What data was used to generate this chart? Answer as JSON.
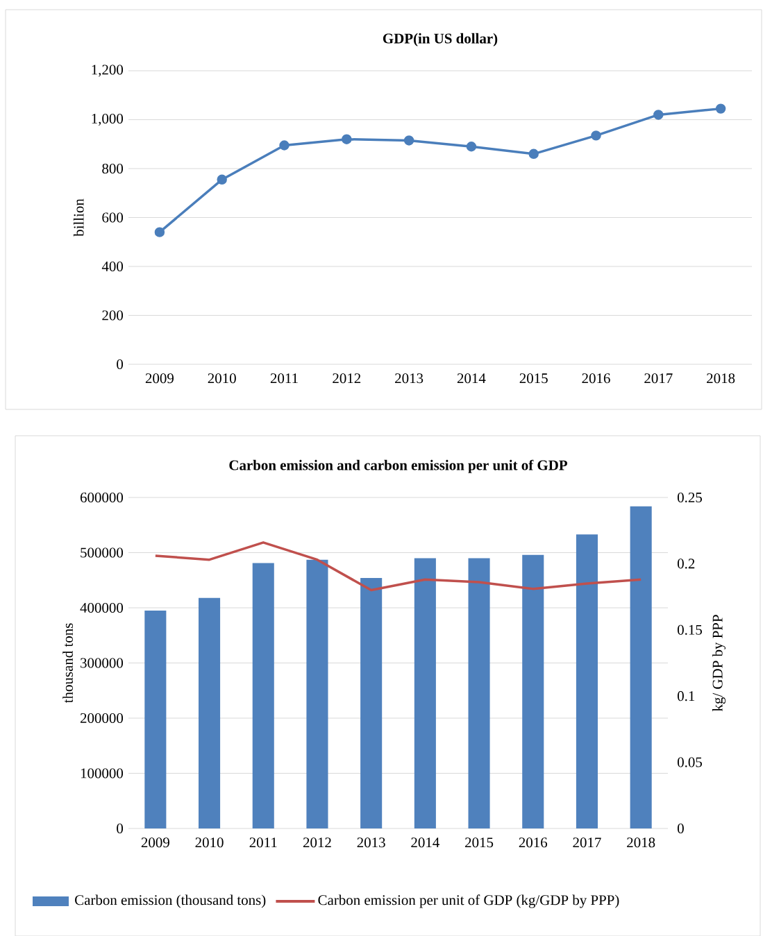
{
  "chart_data": [
    {
      "type": "line",
      "title": "GDP(in US dollar)",
      "ylabel": "billion",
      "categories": [
        "2009",
        "2010",
        "2011",
        "2012",
        "2013",
        "2014",
        "2015",
        "2016",
        "2017",
        "2018"
      ],
      "series": [
        {
          "color": "#4a7ebb",
          "values": [
            540,
            755,
            895,
            920,
            915,
            890,
            860,
            935,
            1020,
            1045
          ]
        }
      ],
      "ylim": [
        0,
        1200
      ],
      "yticks": [
        0,
        200,
        400,
        600,
        800,
        {
          "value": 1000,
          "label": "1,000"
        },
        {
          "value": 1200,
          "label": "1,200"
        }
      ],
      "grid": "y",
      "marker": "circle",
      "legend": false
    },
    {
      "type": "bar",
      "title": "Carbon emission and  carbon emission per unit of GDP",
      "ylabel": "thousand tons",
      "y2label": "kg/ GDP  by PPP",
      "categories": [
        "2009",
        "2010",
        "2011",
        "2012",
        "2013",
        "2014",
        "2015",
        "2016",
        "2017",
        "2018"
      ],
      "series": [
        {
          "name": "Carbon emission (thousand tons)",
          "color": "#4f81bd",
          "values": [
            395000,
            418000,
            481000,
            487000,
            454000,
            490000,
            490000,
            496000,
            533000,
            584000
          ]
        },
        {
          "name": "Carbon emission per unit of GDP (kg/GDP by PPP)",
          "type": "line",
          "axis": "y2",
          "color": "#c0504d",
          "values": [
            0.206,
            0.203,
            0.216,
            0.203,
            0.18,
            0.188,
            0.186,
            0.181,
            0.185,
            0.188
          ]
        }
      ],
      "ylim": [
        0,
        600000
      ],
      "yticks": [
        0,
        100000,
        200000,
        300000,
        400000,
        500000,
        600000
      ],
      "y2lim": [
        0,
        0.25
      ],
      "y2ticks": [
        0,
        0.05,
        0.1,
        0.15,
        0.2,
        0.25
      ],
      "grid": "y",
      "legend": "bottom"
    }
  ]
}
